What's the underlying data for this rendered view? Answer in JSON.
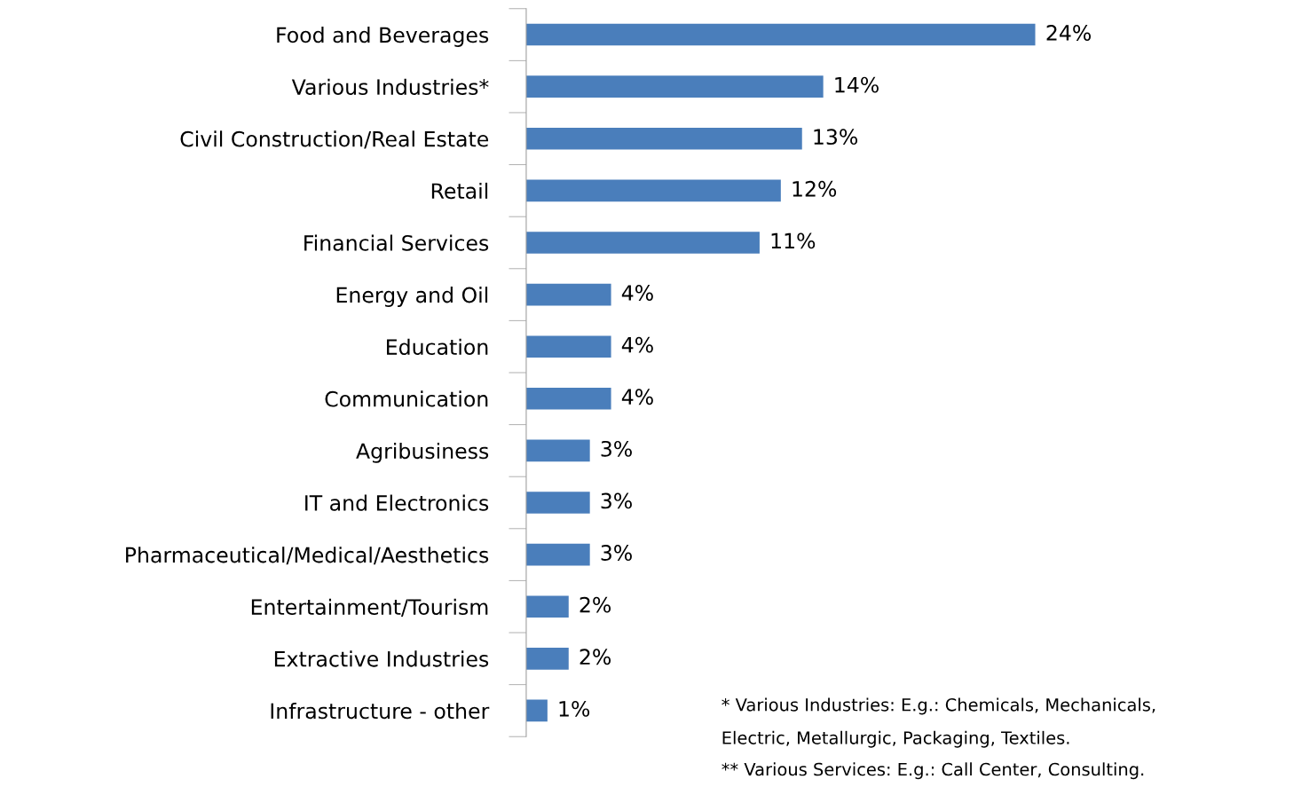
{
  "chart_data": {
    "type": "bar",
    "orientation": "horizontal",
    "categories": [
      "Food and Beverages",
      "Various Industries*",
      "Civil Construction/Real Estate",
      "Retail",
      "Financial Services",
      "Energy and Oil",
      "Education",
      "Communication",
      "Agribusiness",
      "IT and Electronics",
      "Pharmaceutical/Medical/Aesthetics",
      "Entertainment/Tourism",
      "Extractive Industries",
      "Infrastructure - other"
    ],
    "values": [
      24,
      14,
      13,
      12,
      11,
      4,
      4,
      4,
      3,
      3,
      3,
      2,
      2,
      1
    ],
    "value_labels": [
      "24%",
      "14%",
      "13%",
      "12%",
      "11%",
      "4%",
      "4%",
      "4%",
      "3%",
      "3%",
      "3%",
      "2%",
      "2%",
      "1%"
    ],
    "color": "#4a7ebb",
    "grid": false,
    "legend": false,
    "tick_labels": "y",
    "annotations": [
      "* Various Industries: E.g.: Chemicals, Mechanicals,",
      "Electric, Metallurgic, Packaging, Textiles.",
      "** Various Services: E.g.: Call Center, Consulting."
    ]
  }
}
